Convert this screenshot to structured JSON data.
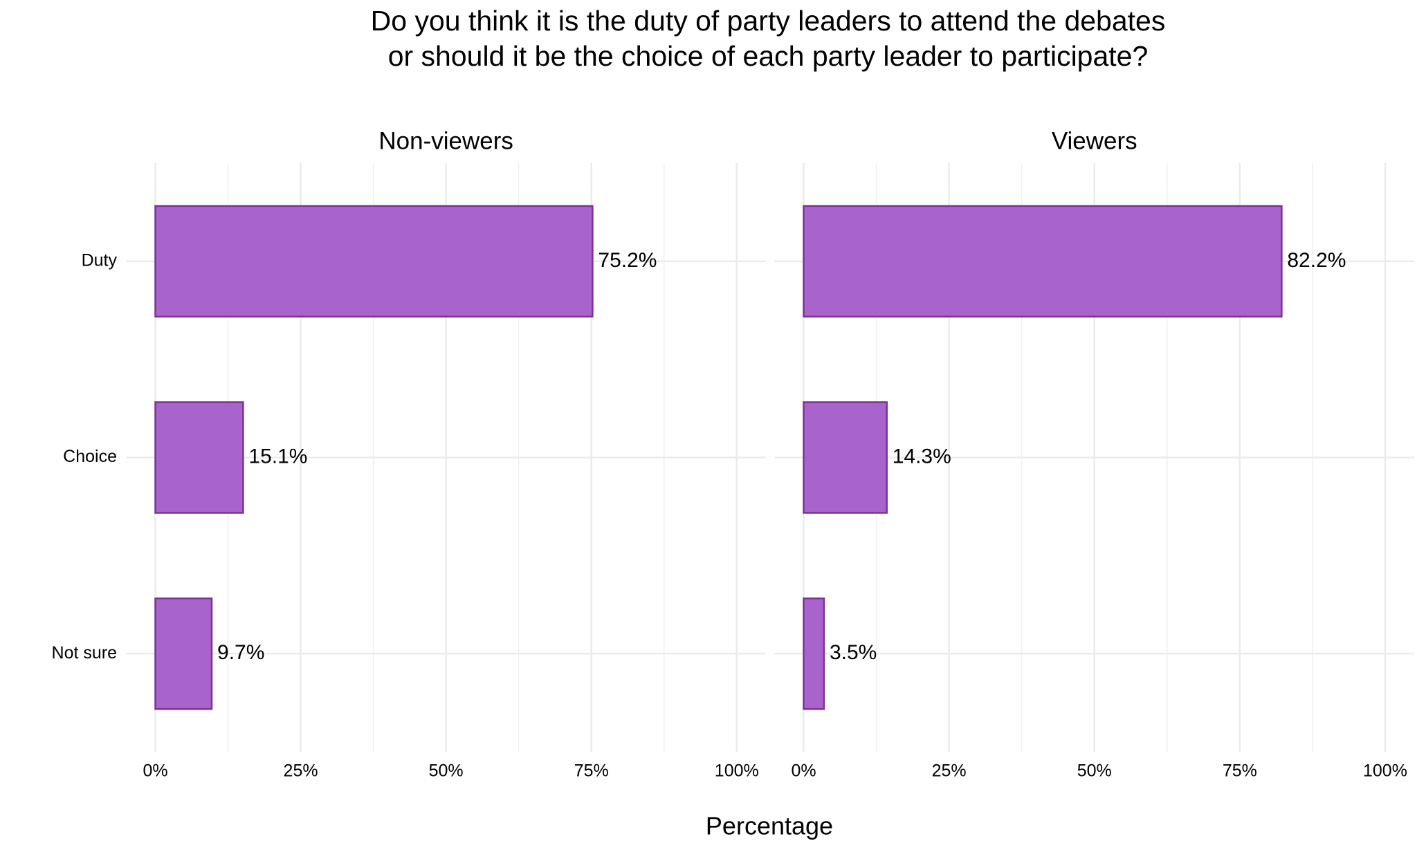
{
  "title": [
    "Do you think it is the duty of party leaders to attend the debates",
    "or should it be the choice of each party leader to participate?"
  ],
  "xlabel": "Percentage",
  "chart_data": [
    {
      "type": "bar",
      "orientation": "horizontal",
      "title": "Non-viewers",
      "categories": [
        "Duty",
        "Choice",
        "Not sure"
      ],
      "values": [
        75.2,
        15.1,
        9.7
      ],
      "value_labels": [
        "75.2%",
        "15.1%",
        "9.7%"
      ],
      "color": "#a864cc",
      "edgecolor": "#7b3294",
      "xlim": [
        -5,
        105
      ],
      "xticks": [
        {
          "value": 0,
          "label": "0%"
        },
        {
          "value": 25,
          "label": "25%"
        },
        {
          "value": 50,
          "label": "50%"
        },
        {
          "value": 75,
          "label": "75%"
        },
        {
          "value": 100,
          "label": "100%"
        }
      ],
      "minor_xticks": [
        12.5,
        37.5,
        62.5,
        87.5
      ],
      "grid": true
    },
    {
      "type": "bar",
      "orientation": "horizontal",
      "title": "Viewers",
      "values": [
        82.2,
        14.3,
        3.5
      ],
      "value_labels": [
        "82.2%",
        "14.3%",
        "3.5%"
      ],
      "color": "#a864cc",
      "edgecolor": "#7b3294",
      "xlim": [
        -5,
        105
      ],
      "xticks": [
        {
          "value": 0,
          "label": "0%"
        },
        {
          "value": 25,
          "label": "25%"
        },
        {
          "value": 50,
          "label": "50%"
        },
        {
          "value": 75,
          "label": "75%"
        },
        {
          "value": 100,
          "label": "100%"
        }
      ],
      "minor_xticks": [
        12.5,
        37.5,
        62.5,
        87.5
      ],
      "grid": true
    }
  ]
}
